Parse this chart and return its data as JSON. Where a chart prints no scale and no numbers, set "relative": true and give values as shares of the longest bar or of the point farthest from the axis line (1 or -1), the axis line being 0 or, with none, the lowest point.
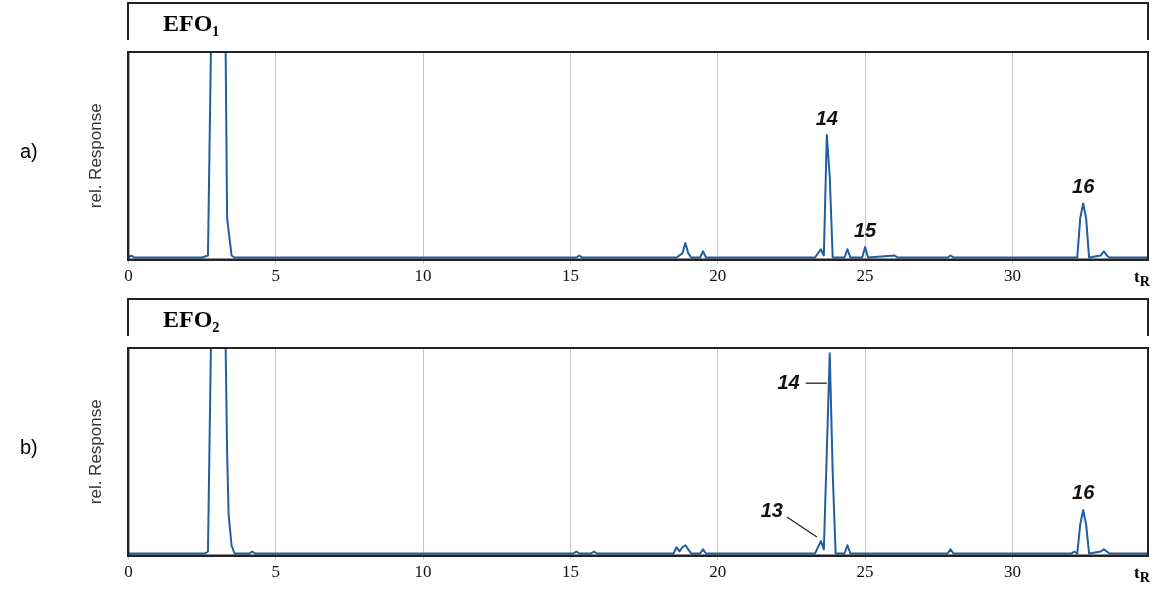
{
  "chart_data": [
    {
      "type": "line",
      "title": "EFO₁",
      "xlabel": "t$_{R}$",
      "ylabel": "rel. Response",
      "relative": true,
      "color": "#1f5fa0",
      "grid": "x",
      "legend": false,
      "marker": "none",
      "xlim": [
        0,
        34.6
      ],
      "xticks": [
        0,
        5,
        10,
        15,
        20,
        25,
        30
      ],
      "x": [
        0,
        0.1,
        0.2,
        2.5,
        2.7,
        2.8,
        3.3,
        3.35,
        3.5,
        3.6,
        15.2,
        15.3,
        15.4,
        18.6,
        18.8,
        18.9,
        19.0,
        19.1,
        19.4,
        19.5,
        19.6,
        23.3,
        23.5,
        23.6,
        23.7,
        23.8,
        23.9,
        24.3,
        24.4,
        24.5,
        24.9,
        25.0,
        25.1,
        26.0,
        26.1,
        27.8,
        27.9,
        28.0,
        32.2,
        32.3,
        32.4,
        32.5,
        32.6,
        33.0,
        33.1,
        33.2,
        33.3,
        34.6
      ],
      "values": [
        0.01,
        0.02,
        0.01,
        0.01,
        0.02,
        1,
        1,
        0.2,
        0.02,
        0.01,
        0.01,
        0.02,
        0.01,
        0.01,
        0.03,
        0.08,
        0.03,
        0.01,
        0.01,
        0.04,
        0.01,
        0.01,
        0.05,
        0.02,
        0.6,
        0.4,
        0.01,
        0.01,
        0.05,
        0.01,
        0.01,
        0.06,
        0.01,
        0.02,
        0.01,
        0.01,
        0.02,
        0.01,
        0.01,
        0.2,
        0.27,
        0.2,
        0.01,
        0.02,
        0.04,
        0.02,
        0.01,
        0.01
      ],
      "annotations": [
        "a)",
        {
          "text": "14",
          "x": 23.7,
          "y": 0.6
        },
        {
          "text": "15",
          "x": 25.0,
          "y": 0.06
        },
        {
          "text": "16",
          "x": 32.4,
          "y": 0.27
        }
      ]
    },
    {
      "type": "line",
      "title": "EFO₂",
      "xlabel": "t$_{R}$",
      "ylabel": "rel. Response",
      "relative": true,
      "color": "#1f5fa0",
      "grid": "x",
      "legend": false,
      "marker": "none",
      "xlim": [
        0,
        34.6
      ],
      "xticks": [
        0,
        5,
        10,
        15,
        20,
        25,
        30
      ],
      "x": [
        0,
        2.6,
        2.7,
        2.8,
        3.3,
        3.35,
        3.4,
        3.5,
        3.6,
        4.1,
        4.2,
        4.3,
        15.1,
        15.2,
        15.3,
        15.7,
        15.8,
        15.9,
        18.5,
        18.6,
        18.7,
        18.8,
        18.9,
        19.0,
        19.1,
        19.4,
        19.5,
        19.6,
        23.3,
        23.5,
        23.6,
        23.7,
        23.8,
        23.9,
        24.0,
        24.3,
        24.4,
        24.5,
        25.0,
        27.8,
        27.9,
        28.0,
        32.0,
        32.1,
        32.2,
        32.3,
        32.4,
        32.5,
        32.6,
        33.0,
        33.1,
        33.2,
        33.3,
        34.6
      ],
      "values": [
        0.01,
        0.01,
        0.02,
        1,
        1,
        0.5,
        0.2,
        0.05,
        0.01,
        0.01,
        0.02,
        0.01,
        0.01,
        0.02,
        0.01,
        0.01,
        0.02,
        0.01,
        0.01,
        0.04,
        0.02,
        0.04,
        0.05,
        0.03,
        0.01,
        0.01,
        0.03,
        0.01,
        0.01,
        0.07,
        0.03,
        0.5,
        0.975,
        0.4,
        0.01,
        0.01,
        0.05,
        0.01,
        0.01,
        0.01,
        0.03,
        0.01,
        0.01,
        0.02,
        0.01,
        0.15,
        0.22,
        0.15,
        0.01,
        0.02,
        0.03,
        0.02,
        0.01,
        0.01
      ],
      "annotations": [
        "b)",
        {
          "text": "14",
          "x": 23.8,
          "y": 0.975
        },
        {
          "text": "13",
          "x": 23.5,
          "y": 0.07
        },
        {
          "text": "16",
          "x": 32.4,
          "y": 0.22
        }
      ]
    }
  ]
}
